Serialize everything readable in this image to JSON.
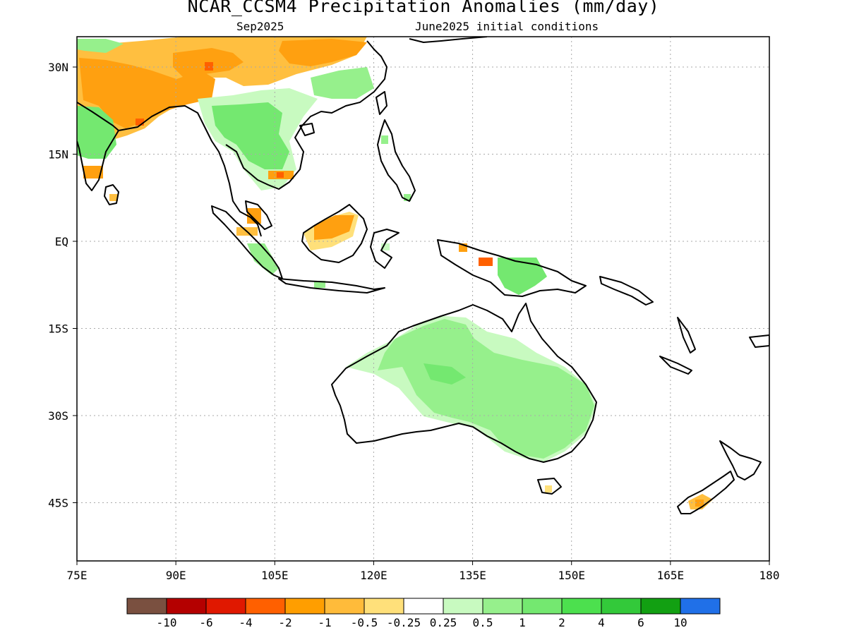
{
  "title": "NCAR_CCSM4 Precipitation Anomalies (mm/day)",
  "subtitle_left": "Sep2025",
  "subtitle_right": "June2025 initial conditions",
  "lat_ticks": [
    {
      "label": "30N",
      "value": 30
    },
    {
      "label": "15N",
      "value": 15
    },
    {
      "label": "EQ",
      "value": 0
    },
    {
      "label": "15S",
      "value": -15
    },
    {
      "label": "30S",
      "value": -30
    },
    {
      "label": "45S",
      "value": -45
    }
  ],
  "lon_ticks": [
    {
      "label": "75E",
      "value": 75
    },
    {
      "label": "90E",
      "value": 90
    },
    {
      "label": "105E",
      "value": 105
    },
    {
      "label": "120E",
      "value": 120
    },
    {
      "label": "135E",
      "value": 135
    },
    {
      "label": "150E",
      "value": 150
    },
    {
      "label": "165E",
      "value": 165
    },
    {
      "label": "180",
      "value": 180
    }
  ],
  "colorbar": {
    "colors": [
      "#7a5040",
      "#b40000",
      "#e01800",
      "#ff6000",
      "#ff9e00",
      "#ffbb3a",
      "#ffe07a",
      "#ffffff",
      "#c8fac0",
      "#96f08c",
      "#74e870",
      "#4ce04e",
      "#33c93a",
      "#12a012",
      "#2070e8"
    ],
    "labels": [
      "-10",
      "-6",
      "-4",
      "-2",
      "-1",
      "-0.5",
      "-0.25",
      "0.25",
      "0.5",
      "1",
      "2",
      "4",
      "6",
      "10"
    ]
  },
  "legend_colors": {
    "orange": "#ffa010",
    "light_orange": "#ffbf40",
    "yellow": "#ffe07a",
    "red_orange": "#ff6000",
    "pale_green": "#c8fac0",
    "light_green": "#96f08c",
    "green": "#74e870"
  }
}
